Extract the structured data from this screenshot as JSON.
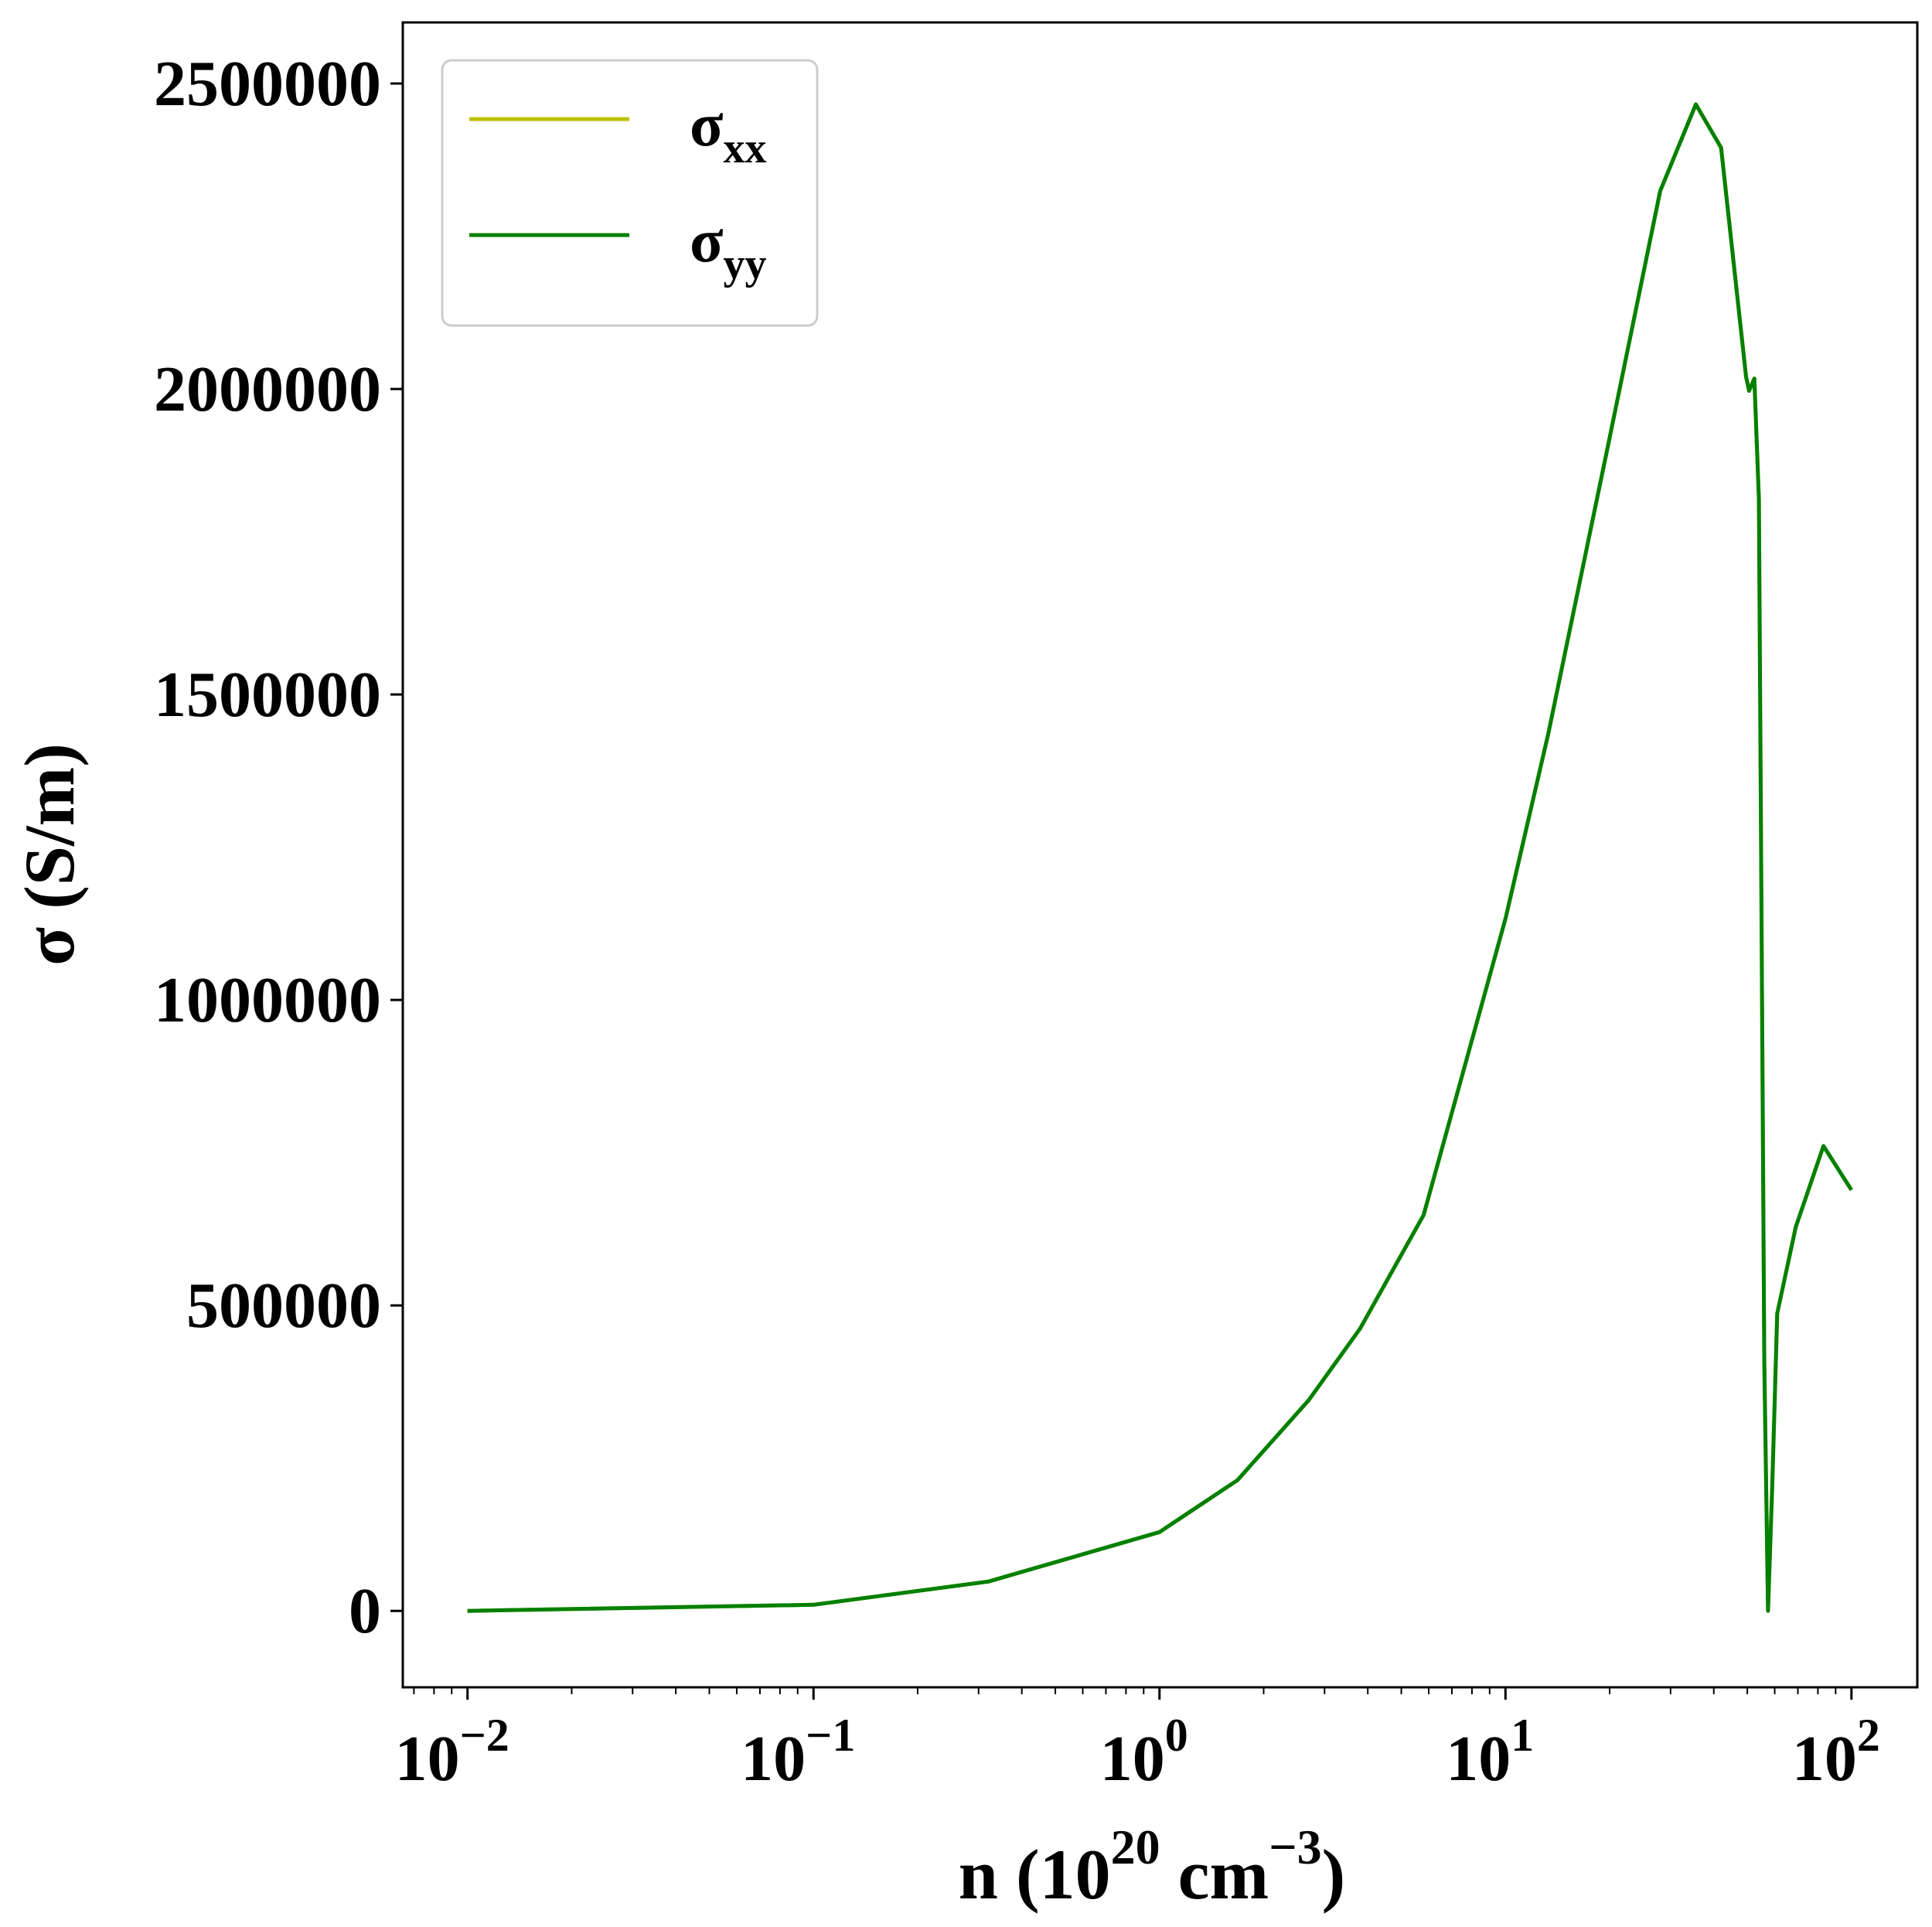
{
  "chart_data": {
    "type": "line",
    "xlabel": {
      "base": "n (10",
      "sup1": "20",
      "mid": " cm",
      "sup2": "−3",
      "end": ")"
    },
    "ylabel": "σ (S/m)",
    "xscale": "log",
    "xlim": [
      0.0065,
      155
    ],
    "ylim": [
      -125000,
      2600000
    ],
    "x_ticks": [
      {
        "base": "10",
        "exp": "−2",
        "value": 0.01
      },
      {
        "base": "10",
        "exp": "−1",
        "value": 0.1
      },
      {
        "base": "10",
        "exp": "0",
        "value": 1
      },
      {
        "base": "10",
        "exp": "1",
        "value": 10
      },
      {
        "base": "10",
        "exp": "2",
        "value": 100
      }
    ],
    "y_ticks": [
      {
        "label": "0",
        "value": 0
      },
      {
        "label": "500000",
        "value": 500000
      },
      {
        "label": "1000000",
        "value": 1000000
      },
      {
        "label": "1500000",
        "value": 1500000
      },
      {
        "label": "2000000",
        "value": 2000000
      },
      {
        "label": "2500000",
        "value": 2500000
      }
    ],
    "grid": false,
    "legend_position": "top-left",
    "series": [
      {
        "name": "σ",
        "sub": "xx",
        "color": "#bfbf00",
        "x": [
          0.01,
          0.1,
          0.32,
          1,
          1.68,
          2.7,
          3.8,
          5.8,
          10,
          13.3,
          20,
          28,
          35.5,
          42,
          49.6,
          50.6,
          52.4,
          54,
          56,
          57.4,
          59,
          61,
          69,
          83,
          100
        ],
        "y": [
          0,
          10000,
          48000,
          129000,
          214000,
          345000,
          462000,
          648000,
          1133000,
          1436000,
          1920000,
          2324000,
          2466000,
          2395000,
          2020000,
          1997000,
          2017000,
          1820000,
          406000,
          0,
          202000,
          487000,
          628000,
          761000,
          689000
        ]
      },
      {
        "name": "σ",
        "sub": "yy",
        "color": "#008000",
        "x": [
          0.01,
          0.1,
          0.32,
          1,
          1.68,
          2.7,
          3.8,
          5.8,
          10,
          13.3,
          20,
          28,
          35.5,
          42,
          49.6,
          50.6,
          52.4,
          54,
          56,
          57.4,
          59,
          61,
          69,
          83,
          100
        ],
        "y": [
          0,
          10000,
          48000,
          129000,
          214000,
          345000,
          462000,
          648000,
          1133000,
          1436000,
          1920000,
          2324000,
          2466000,
          2395000,
          2020000,
          1997000,
          2017000,
          1820000,
          406000,
          0,
          202000,
          487000,
          628000,
          761000,
          689000
        ]
      }
    ]
  }
}
